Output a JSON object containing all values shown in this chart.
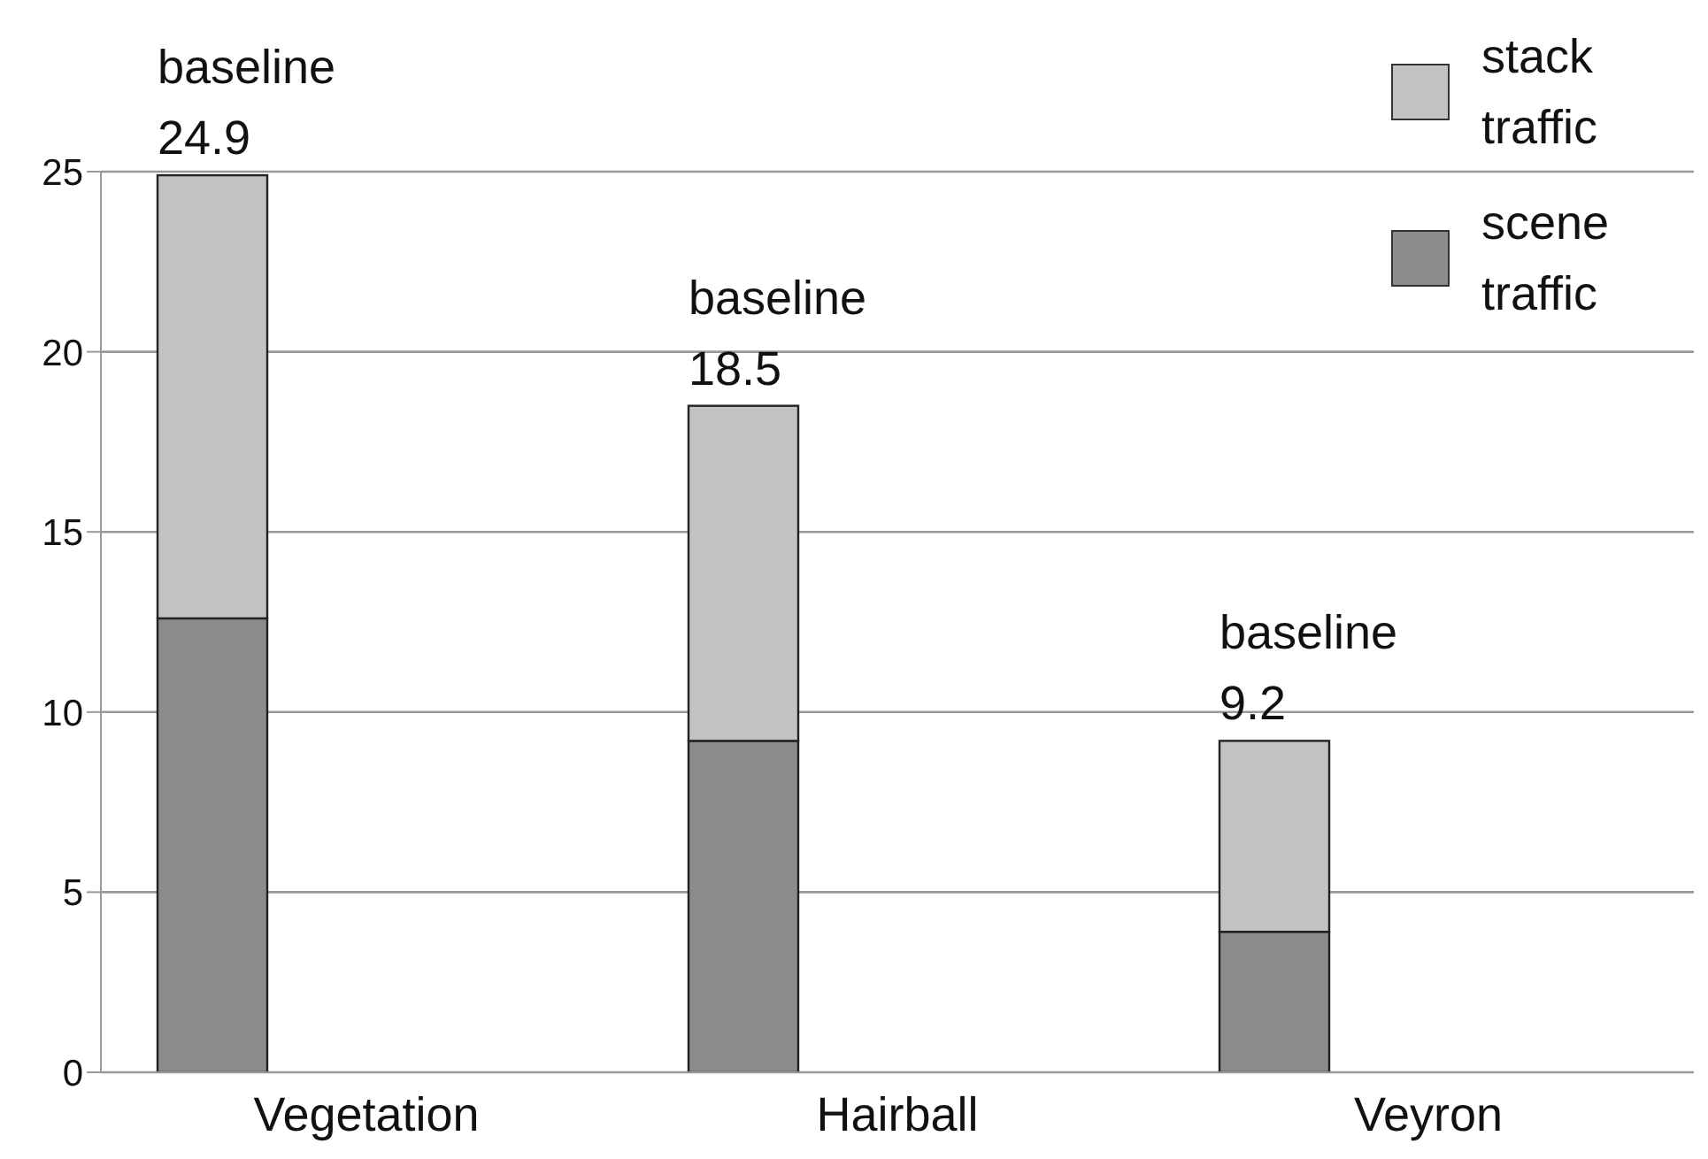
{
  "chart_data": {
    "type": "bar",
    "stacked": true,
    "categories": [
      "Vegetation",
      "Hairball",
      "Veyron"
    ],
    "series": [
      {
        "name": "scene traffic",
        "color": "#8c8c8c",
        "values": [
          12.6,
          9.2,
          3.9
        ]
      },
      {
        "name": "stack traffic",
        "color": "#c2c2c2",
        "values": [
          12.3,
          9.3,
          5.3
        ]
      }
    ],
    "totals": [
      "baseline\n24.9",
      "baseline\n18.5",
      "baseline\n9.2"
    ],
    "ylim": [
      0,
      25
    ],
    "yticks": [
      0,
      5,
      10,
      15,
      20,
      25
    ],
    "grid": "y",
    "legend": "top right"
  }
}
